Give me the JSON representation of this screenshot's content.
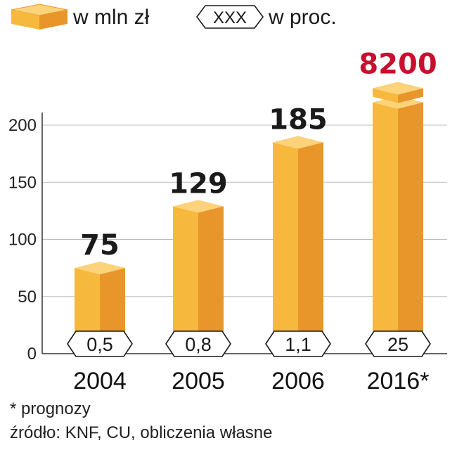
{
  "legend": {
    "bar_label": "w mln zł",
    "badge_sample": "XXX",
    "badge_label": "w proc."
  },
  "colors": {
    "bar_front_left": "#f7b83e",
    "bar_front_right": "#e8962a",
    "bar_top": "#fcd27a",
    "highlight_value": "#c8102e",
    "value_text": "#1a1a1a",
    "grid": "#bdbdbd"
  },
  "chart_data": {
    "type": "bar",
    "categories": [
      "2004",
      "2005",
      "2006",
      "2016*"
    ],
    "values": [
      75,
      129,
      185,
      8200
    ],
    "value_labels": [
      "75",
      "129",
      "185",
      "8200"
    ],
    "percent_labels": [
      "0,5",
      "0,8",
      "1,1",
      "25"
    ],
    "highlight_index": 3,
    "broken_axis_index": 3,
    "units": "w mln zł",
    "ylim": [
      0,
      220
    ],
    "yticks": [
      0,
      50,
      100,
      150,
      200
    ],
    "grid": true,
    "legend_position": "top-left"
  },
  "footnotes": {
    "forecast": "* prognozy",
    "source": "źródło: KNF, CU, obliczenia własne"
  }
}
